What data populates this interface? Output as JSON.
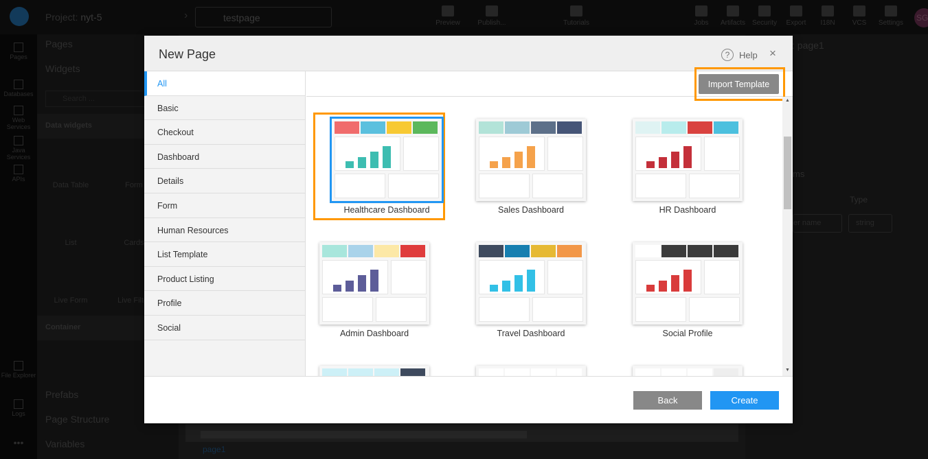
{
  "app": {
    "project_label": "Project:",
    "project_name": "nyt-5",
    "current_page": "testpage",
    "toolbar": [
      "Preview",
      "Publish...",
      "Tutorials",
      "Jobs",
      "Artifacts",
      "Security",
      "Export",
      "I18N",
      "VCS",
      "Settings"
    ],
    "user_initials": "SG",
    "rail": [
      "Pages",
      "Databases",
      "Web Services",
      "Java Services",
      "APIs",
      "File Explorer",
      "Logs"
    ],
    "sidebar": {
      "pages": "Pages",
      "widgets": "Widgets",
      "search_placeholder": "Search ...",
      "data_widgets": "Data widgets",
      "widget_items": [
        "Data Table",
        "Form",
        "List",
        "Cards",
        "Live Form",
        "Live Filter"
      ],
      "container": "Container",
      "prefabs": "Prefabs",
      "page_structure": "Page Structure",
      "variables": "Variables"
    },
    "right_panel": {
      "title": ": page1",
      "section": "ms",
      "type_label": "Type",
      "param_placeholder": "er name",
      "type_value": "string"
    },
    "canvas_tab": "page1"
  },
  "modal": {
    "title": "New Page",
    "help": "Help",
    "close": "×",
    "import_template": "Import Template",
    "categories": [
      "All",
      "Basic",
      "Checkout",
      "Dashboard",
      "Details",
      "Form",
      "Human Resources",
      "List Template",
      "Product Listing",
      "Profile",
      "Social"
    ],
    "active_category": "All",
    "templates": [
      {
        "name": "Healthcare Dashboard",
        "selected": true,
        "colors": [
          "#f06c6c",
          "#5bc0de",
          "#f7c933",
          "#5cb85c"
        ],
        "bars": "#3dbdb1"
      },
      {
        "name": "Sales Dashboard",
        "selected": false,
        "colors": [
          "#b2e3d8",
          "#9ecad6",
          "#5d7089",
          "#465577"
        ],
        "bars": "#f5a24b"
      },
      {
        "name": "HR Dashboard",
        "selected": false,
        "colors": [
          "#dff3f3",
          "#b8ecec",
          "#d9423f",
          "#4cc0de"
        ],
        "bars": "#c4303a"
      },
      {
        "name": "Admin Dashboard",
        "selected": false,
        "colors": [
          "#a8e6dc",
          "#a9d3ea",
          "#fce8a6",
          "#df3c3c"
        ],
        "bars": "#5d5d99"
      },
      {
        "name": "Travel Dashboard",
        "selected": false,
        "colors": [
          "#3e4a5e",
          "#177fb0",
          "#e6b934",
          "#f29748"
        ],
        "bars": "#32c0e6"
      },
      {
        "name": "Social Profile",
        "selected": false,
        "colors": [
          "#ffffff",
          "#3b3b3b",
          "#3b3b3b",
          "#3b3b3b"
        ],
        "bars": "#d93b3b"
      },
      {
        "name": "",
        "selected": false,
        "colors": [
          "#cdf0f7",
          "#cdf0f7",
          "#cdf0f7",
          "#3e4a5e"
        ],
        "bars": "#999"
      },
      {
        "name": "",
        "selected": false,
        "colors": [
          "#ffffff",
          "#ffffff",
          "#ffffff",
          "#ffffff"
        ],
        "bars": "#999"
      },
      {
        "name": "",
        "selected": false,
        "colors": [
          "#ffffff",
          "#ffffff",
          "#ffffff",
          "#eeeeee"
        ],
        "bars": "#999"
      }
    ],
    "back": "Back",
    "create": "Create"
  },
  "colors": {
    "accent": "#2196f3",
    "highlight": "#ff9800",
    "secondary_button": "#888888"
  }
}
